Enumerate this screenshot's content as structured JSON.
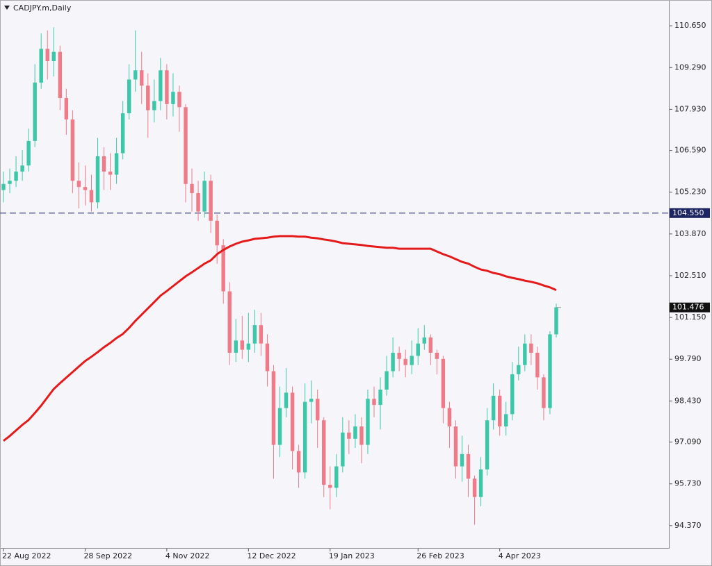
{
  "chart_data": {
    "type": "candlestick",
    "title": "CADJPY.m,Daily",
    "categories": [
      "22 Aug 2022",
      null,
      null,
      null,
      null,
      null,
      null,
      null,
      null,
      null,
      null,
      null,
      null,
      "28 Sep 2022",
      null,
      null,
      null,
      null,
      null,
      null,
      null,
      null,
      null,
      null,
      null,
      null,
      "4 Nov 2022",
      null,
      null,
      null,
      null,
      null,
      null,
      null,
      null,
      null,
      null,
      null,
      null,
      "12 Dec 2022",
      null,
      null,
      null,
      null,
      null,
      null,
      null,
      null,
      null,
      null,
      null,
      null,
      "19 Jan 2023",
      null,
      null,
      null,
      null,
      null,
      null,
      null,
      null,
      null,
      null,
      null,
      null,
      null,
      "26 Feb 2023",
      null,
      null,
      null,
      null,
      null,
      null,
      null,
      null,
      null,
      null,
      null,
      null,
      "4 Apr 2023",
      null,
      null,
      null,
      null,
      null,
      null,
      null,
      null,
      null
    ],
    "open": [
      105.3,
      105.5,
      105.6,
      105.9,
      106.1,
      106.9,
      108.8,
      109.9,
      109.5,
      109.8,
      108.3,
      107.6,
      105.6,
      105.4,
      105.3,
      104.9,
      106.4,
      105.9,
      105.8,
      106.5,
      107.8,
      108.9,
      109.2,
      108.7,
      107.9,
      108.2,
      109.2,
      108.1,
      108.5,
      108.0,
      105.5,
      105.2,
      104.6,
      105.6,
      104.3,
      103.5,
      102.0,
      100.0,
      100.4,
      100.1,
      100.3,
      100.9,
      100.3,
      99.4,
      97.0,
      98.2,
      98.7,
      96.8,
      96.1,
      98.4,
      98.5,
      97.8,
      95.7,
      95.6,
      96.3,
      97.4,
      97.2,
      97.6,
      97.0,
      98.5,
      98.3,
      98.8,
      99.4,
      100.0,
      99.8,
      99.6,
      99.9,
      100.3,
      100.5,
      100.0,
      99.8,
      98.2,
      97.6,
      96.3,
      96.7,
      95.9,
      95.3,
      96.2,
      97.8,
      98.6,
      97.6,
      98.0,
      99.3,
      99.6,
      100.3,
      100.0,
      99.2,
      98.2,
      100.6
    ],
    "high": [
      105.9,
      106.0,
      106.4,
      106.6,
      107.3,
      109.4,
      110.4,
      110.5,
      110.6,
      110.0,
      108.6,
      107.9,
      106.2,
      106.1,
      105.8,
      107.0,
      106.7,
      106.5,
      107.0,
      108.2,
      109.4,
      110.5,
      109.8,
      109.1,
      108.9,
      109.6,
      109.4,
      109.1,
      108.7,
      108.1,
      106.0,
      105.6,
      105.9,
      105.8,
      104.5,
      103.7,
      102.3,
      101.1,
      101.2,
      101.3,
      101.4,
      101.3,
      100.6,
      99.6,
      98.9,
      99.5,
      98.9,
      97.0,
      99.0,
      99.1,
      98.8,
      97.9,
      96.3,
      96.7,
      97.9,
      97.8,
      98.0,
      97.9,
      98.8,
      98.9,
      99.2,
      99.9,
      100.5,
      100.2,
      100.1,
      100.4,
      100.8,
      100.9,
      100.6,
      100.1,
      99.9,
      98.4,
      97.8,
      97.3,
      97.0,
      96.0,
      96.6,
      98.2,
      99.0,
      98.8,
      98.4,
      99.7,
      100.2,
      100.6,
      100.6,
      100.2,
      99.3,
      100.7,
      101.6
    ],
    "low": [
      104.9,
      105.2,
      105.4,
      105.6,
      105.9,
      106.7,
      108.6,
      108.9,
      109.0,
      107.9,
      107.1,
      105.2,
      104.7,
      104.8,
      104.6,
      104.7,
      105.3,
      105.3,
      105.5,
      106.3,
      107.6,
      108.5,
      108.1,
      107.0,
      107.5,
      107.9,
      107.6,
      107.7,
      107.2,
      104.9,
      104.6,
      104.3,
      104.4,
      103.9,
      102.9,
      101.6,
      99.6,
      99.7,
      99.8,
      99.7,
      100.0,
      99.9,
      98.9,
      95.9,
      96.6,
      97.9,
      96.2,
      95.6,
      95.9,
      97.7,
      96.9,
      95.3,
      94.9,
      95.3,
      96.1,
      96.7,
      96.9,
      96.4,
      96.7,
      97.9,
      97.5,
      98.6,
      99.2,
      99.4,
      99.2,
      99.3,
      99.6,
      100.1,
      99.6,
      99.3,
      97.7,
      96.9,
      95.9,
      95.8,
      95.3,
      94.4,
      95.0,
      96.0,
      97.5,
      97.3,
      97.3,
      97.8,
      99.1,
      99.4,
      99.6,
      98.8,
      97.8,
      98.0,
      100.5
    ],
    "close": [
      105.5,
      105.6,
      105.9,
      106.1,
      106.9,
      108.8,
      109.9,
      109.5,
      109.8,
      108.3,
      107.6,
      105.6,
      105.4,
      105.3,
      104.9,
      106.4,
      105.9,
      105.8,
      106.5,
      107.8,
      108.9,
      109.2,
      108.7,
      107.9,
      108.2,
      109.2,
      108.1,
      108.5,
      108.0,
      105.5,
      105.2,
      104.6,
      105.6,
      104.3,
      103.5,
      102.0,
      100.0,
      100.4,
      100.1,
      100.3,
      100.9,
      100.3,
      99.4,
      97.0,
      98.2,
      98.7,
      96.8,
      96.1,
      98.4,
      98.5,
      97.8,
      95.7,
      95.6,
      96.3,
      97.4,
      97.2,
      97.6,
      97.0,
      98.5,
      98.3,
      98.8,
      99.4,
      100.0,
      99.8,
      99.6,
      99.9,
      100.3,
      100.5,
      100.0,
      99.8,
      98.2,
      97.6,
      96.3,
      96.7,
      95.9,
      95.3,
      96.2,
      97.8,
      98.6,
      97.6,
      98.0,
      99.3,
      99.6,
      100.3,
      100.0,
      99.2,
      98.2,
      100.6,
      101.48
    ],
    "up_color": "#3cc8a8",
    "down_color": "#ef7b88",
    "moving_average": {
      "color": "#e51b1b",
      "values": [
        97.13,
        97.29,
        97.47,
        97.65,
        97.81,
        98.04,
        98.28,
        98.55,
        98.82,
        99.01,
        99.19,
        99.37,
        99.55,
        99.73,
        99.87,
        100.02,
        100.18,
        100.32,
        100.48,
        100.61,
        100.81,
        101.04,
        101.24,
        101.45,
        101.65,
        101.86,
        102.01,
        102.17,
        102.33,
        102.49,
        102.62,
        102.76,
        102.9,
        103.01,
        103.21,
        103.35,
        103.46,
        103.55,
        103.62,
        103.66,
        103.71,
        103.73,
        103.75,
        103.78,
        103.8,
        103.8,
        103.8,
        103.78,
        103.78,
        103.75,
        103.73,
        103.69,
        103.66,
        103.62,
        103.57,
        103.55,
        103.53,
        103.51,
        103.48,
        103.46,
        103.44,
        103.42,
        103.42,
        103.39,
        103.39,
        103.39,
        103.39,
        103.39,
        103.39,
        103.3,
        103.21,
        103.14,
        103.05,
        102.96,
        102.9,
        102.8,
        102.71,
        102.67,
        102.6,
        102.56,
        102.49,
        102.44,
        102.4,
        102.35,
        102.31,
        102.26,
        102.19,
        102.13,
        102.04
      ]
    },
    "ylim": [
      93.62,
      111.49
    ],
    "yticks": [
      {
        "value": 110.65,
        "label": "110.650"
      },
      {
        "value": 109.29,
        "label": "109.290"
      },
      {
        "value": 107.93,
        "label": "107.930"
      },
      {
        "value": 106.59,
        "label": "106.590"
      },
      {
        "value": 105.23,
        "label": "105.230"
      },
      {
        "value": 103.87,
        "label": "103.870"
      },
      {
        "value": 102.51,
        "label": "102.510"
      },
      {
        "value": 101.15,
        "label": "101.150"
      },
      {
        "value": 99.79,
        "label": "99.790"
      },
      {
        "value": 98.43,
        "label": "98.430"
      },
      {
        "value": 97.09,
        "label": "97.090"
      },
      {
        "value": 95.73,
        "label": "95.730"
      },
      {
        "value": 94.37,
        "label": "94.370"
      }
    ],
    "horizontal_line": {
      "value": 104.55,
      "label": "104.550",
      "color": "#5a5f96"
    },
    "last_price": {
      "value": 101.476,
      "label": "101.476"
    }
  }
}
